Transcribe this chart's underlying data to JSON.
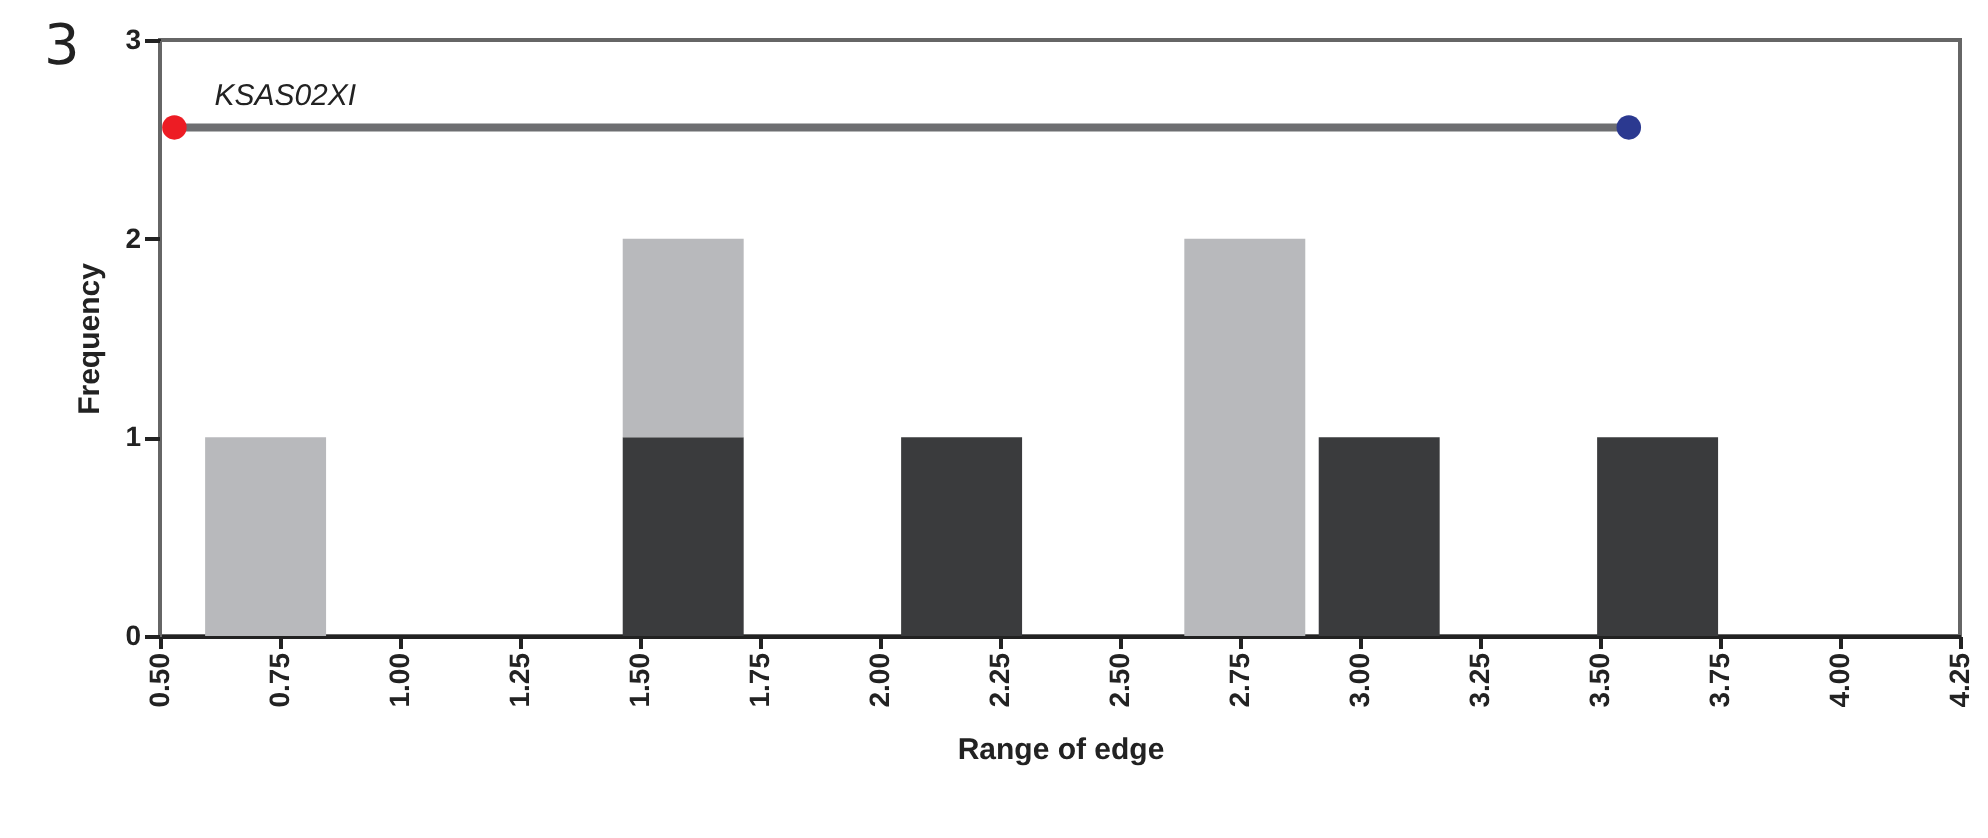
{
  "chart_data": {
    "type": "bar",
    "xlabel": "Range of edge",
    "ylabel": "Frequency",
    "annotations": [
      "3"
    ],
    "x": [
      0.72,
      1.59,
      2.17,
      2.76,
      3.04,
      3.62
    ],
    "stacked": true,
    "series": [
      {
        "color": "#3a3b3d",
        "values": [
          null,
          1,
          1,
          null,
          1,
          1
        ]
      },
      {
        "color": "#b8b9bc",
        "values": [
          1,
          1,
          null,
          2,
          null,
          null
        ]
      },
      {
        "type": "line",
        "name": "KSAS02XI",
        "color": "#6d6e71",
        "x": [
          0.53,
          3.56
        ],
        "values": [
          2.56,
          2.56
        ],
        "colors": [
          "#ed1c24",
          "#2b3990"
        ],
        "marker": "circle",
        "line_style": "solid"
      }
    ],
    "xlim": [
      0.5,
      4.25
    ],
    "xticks": [
      {
        "value": 0.5,
        "label": "0.50"
      },
      {
        "value": 0.75,
        "label": "0.75"
      },
      {
        "value": 1,
        "label": "1.00"
      },
      {
        "value": 1.25,
        "label": "1.25"
      },
      {
        "value": 1.5,
        "label": "1.50"
      },
      {
        "value": 1.75,
        "label": "1.75"
      },
      {
        "value": 2,
        "label": "2.00"
      },
      {
        "value": 2.25,
        "label": "2.25"
      },
      {
        "value": 2.5,
        "label": "2.50"
      },
      {
        "value": 2.75,
        "label": "2.75"
      },
      {
        "value": 3,
        "label": "3.00"
      },
      {
        "value": 3.25,
        "label": "3.25"
      },
      {
        "value": 3.5,
        "label": "3.50"
      },
      {
        "value": 3.75,
        "label": "3.75"
      },
      {
        "value": 4,
        "label": "4.00"
      },
      {
        "value": 4.25,
        "label": "4.25"
      }
    ],
    "ylim": [
      0,
      3
    ],
    "yticks": [
      0,
      1,
      2,
      3
    ],
    "grid": false
  }
}
